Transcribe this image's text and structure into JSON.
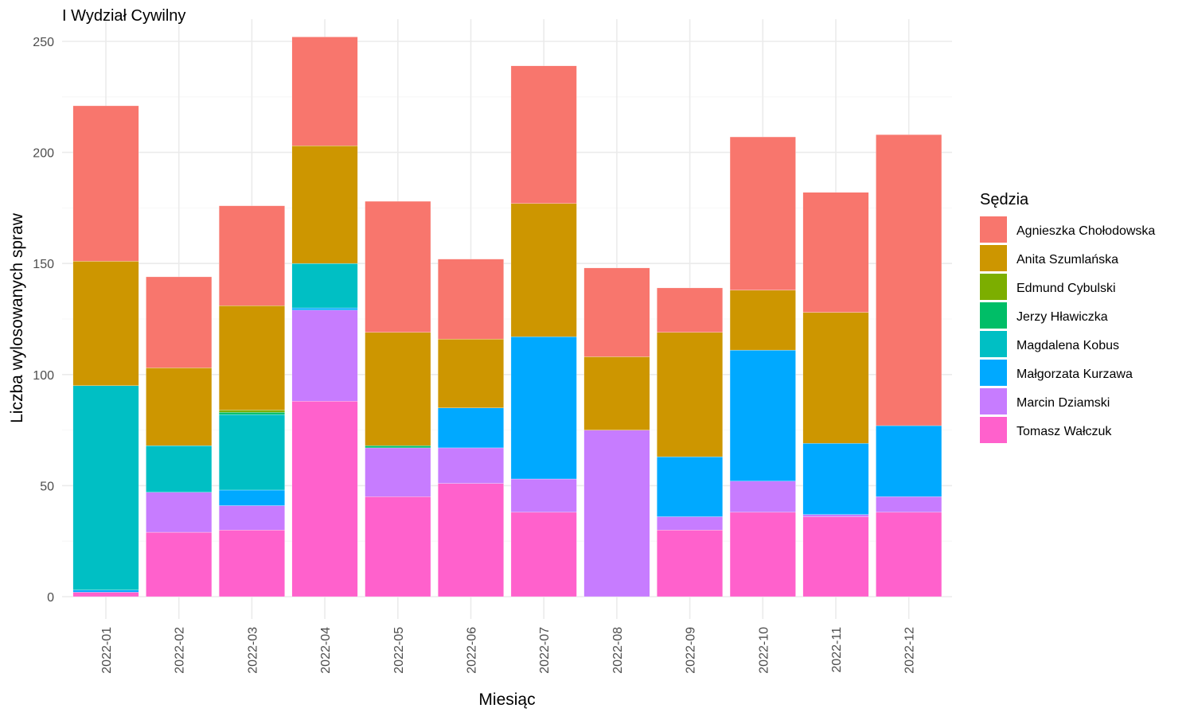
{
  "chart_data": {
    "type": "bar",
    "stacked": true,
    "title": "I Wydział Cywilny",
    "xlabel": "Miesiąc",
    "ylabel": "Liczba wylosowanych spraw",
    "ylim": [
      0,
      260
    ],
    "yticks": [
      0,
      50,
      100,
      150,
      200,
      250
    ],
    "grid": true,
    "legend_title": "Sędzia",
    "legend_position": "right",
    "categories": [
      "2022-01",
      "2022-02",
      "2022-03",
      "2022-04",
      "2022-05",
      "2022-06",
      "2022-07",
      "2022-08",
      "2022-09",
      "2022-10",
      "2022-11",
      "2022-12"
    ],
    "series": [
      {
        "name": "Agnieszka Chołodowska",
        "color": "#F8766D",
        "values": [
          70,
          41,
          45,
          49,
          59,
          36,
          62,
          40,
          20,
          69,
          54,
          131
        ]
      },
      {
        "name": "Anita Szumlańska",
        "color": "#CD9600",
        "values": [
          56,
          35,
          47,
          53,
          51,
          31,
          60,
          33,
          56,
          27,
          59,
          0
        ]
      },
      {
        "name": "Edmund Cybulski",
        "color": "#7CAE00",
        "values": [
          0,
          0,
          1,
          0,
          0,
          0,
          0,
          0,
          0,
          0,
          0,
          0
        ]
      },
      {
        "name": "Jerzy Hławiczka",
        "color": "#00BE67",
        "values": [
          0,
          0,
          1,
          0,
          1,
          0,
          0,
          0,
          0,
          0,
          0,
          0
        ]
      },
      {
        "name": "Magdalena Kobus",
        "color": "#00BFC4",
        "values": [
          92,
          21,
          34,
          20,
          0,
          0,
          0,
          0,
          0,
          0,
          0,
          0
        ]
      },
      {
        "name": "Małgorzata Kurzawa",
        "color": "#00A9FF",
        "values": [
          1,
          0,
          7,
          1,
          0,
          18,
          64,
          0,
          27,
          59,
          32,
          32
        ]
      },
      {
        "name": "Marcin Dziamski",
        "color": "#C77CFF",
        "values": [
          0,
          18,
          11,
          41,
          22,
          16,
          15,
          75,
          6,
          14,
          1,
          7
        ]
      },
      {
        "name": "Tomasz Wałczuk",
        "color": "#FF61CC",
        "values": [
          2,
          29,
          30,
          88,
          45,
          51,
          38,
          0,
          30,
          38,
          36,
          38
        ]
      }
    ]
  }
}
